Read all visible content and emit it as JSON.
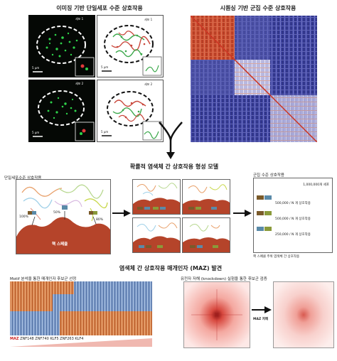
{
  "top": {
    "left_title": "이미징 기반 단일세포 수준 상호작용",
    "right_title": "시퀀싱 기반 군집 수준 상호작용",
    "cell1_label": "세포 1",
    "cell2_label": "세포 2",
    "scale_5um": "5 μm"
  },
  "middle": {
    "title": "확률적 염색체 간 상호작용 형성 모델",
    "left_label": "단일세포수준 상호작용",
    "pct_100": "100%",
    "pct_50": "50%",
    "pct_80": "80%",
    "speckle_label": "핵 스페클",
    "right_title": "군집 수준 상호작용",
    "cells_count": "1,000,000개 세포",
    "row1": "500,000 / N 개 상호작용",
    "row2": "500,000 / N 개 상호작용",
    "row3": "250,000 / N 개 상호작용",
    "bottom_note": "핵 스페클 주위 염색체 간 상호작용"
  },
  "bottom": {
    "title": "염색체 간 상호작용 매개인자 (MAZ) 발견",
    "left_sub": "Motif 분석을 통한 매개인자 후보군 선정",
    "right_sub": "유전자 저해 (knockdown) 실험을 통한 후보군 검증",
    "genes": [
      "MAZ",
      "ZNF148",
      "ZNF740",
      "KLF5",
      "ZNF263",
      "KLF4"
    ],
    "knockdown_label": "MAZ 저해"
  },
  "colors": {
    "hic_red": "#c84a2e",
    "hic_blue": "#3a3f9a",
    "speckle": "#b5442a",
    "maz_red": "#cc2222"
  }
}
